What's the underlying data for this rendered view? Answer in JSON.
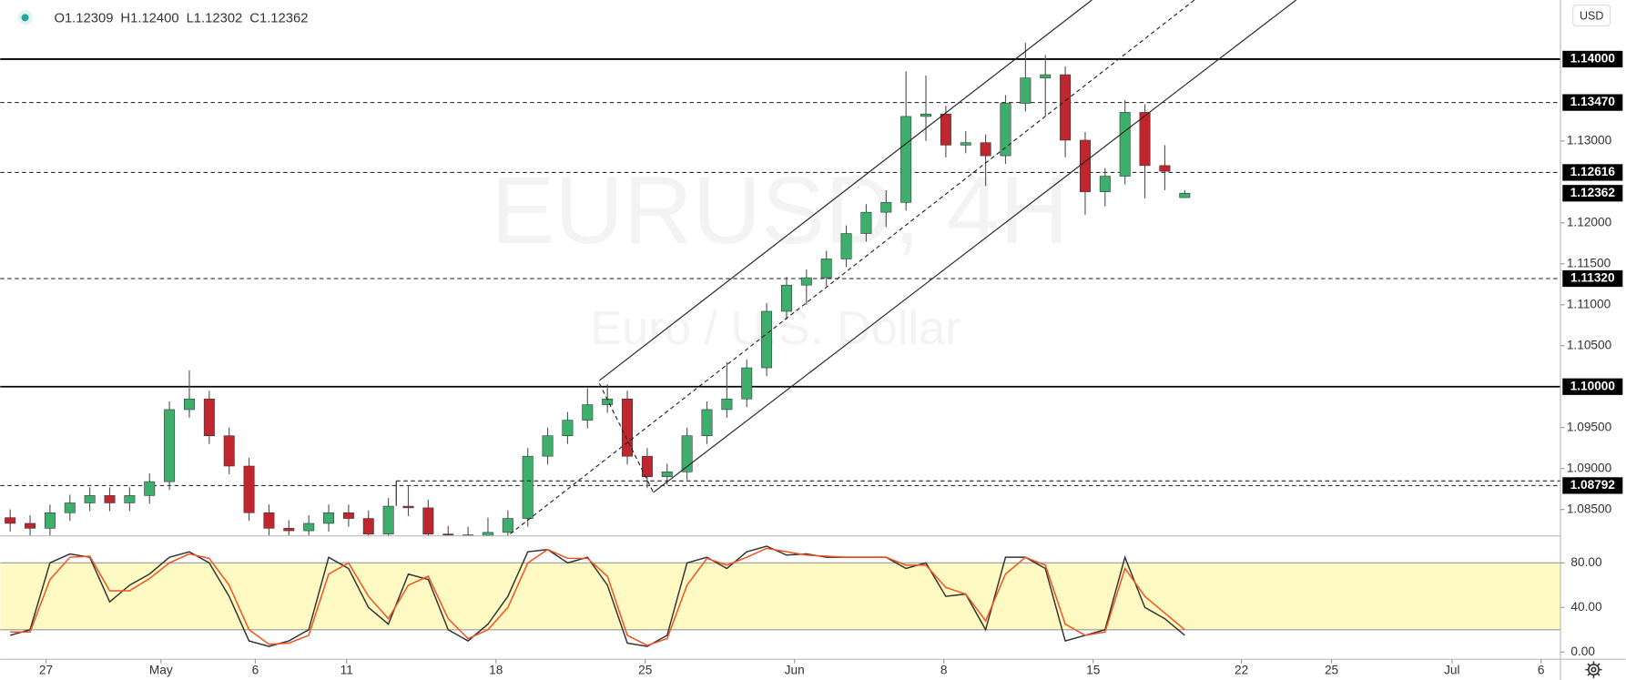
{
  "chart_data": [
    {
      "type": "candlestick",
      "watermark": [
        "EURUSD, 4H",
        "Euro / U.S. Dollar"
      ],
      "currency": "USD",
      "ohlc_labels": [
        "O1.12309",
        "H1.12400",
        "L1.12302",
        "C1.12362"
      ],
      "up_color": "#3dae6b",
      "down_color": "#c0262e",
      "x": [
        2,
        6,
        10,
        14,
        18,
        22,
        26,
        30,
        34,
        38,
        42,
        46,
        50,
        54,
        58,
        62,
        66,
        70,
        74,
        78,
        82,
        86,
        90,
        94,
        98,
        102,
        106,
        110,
        114,
        118,
        122,
        126,
        130,
        134,
        138,
        142,
        146,
        150,
        154,
        158,
        162,
        166,
        170,
        174,
        178,
        182,
        186,
        190,
        194,
        198,
        202,
        206,
        210,
        214,
        218,
        222,
        226,
        230,
        234,
        238
      ],
      "open": [
        1.084,
        1.0833,
        1.0827,
        1.0846,
        1.0858,
        1.0867,
        1.0858,
        1.0867,
        1.0884,
        1.0972,
        1.0985,
        1.094,
        1.0903,
        1.0846,
        1.0827,
        1.0824,
        1.0833,
        1.0846,
        1.0839,
        1.082,
        1.0854,
        1.0852,
        1.082,
        1.0819,
        1.0818,
        1.0822,
        1.0839,
        1.0915,
        1.094,
        1.0959,
        1.0978,
        1.0985,
        1.0915,
        1.089,
        1.0896,
        1.094,
        1.0972,
        1.0985,
        1.1023,
        1.1092,
        1.1124,
        1.1133,
        1.1156,
        1.1187,
        1.1213,
        1.1225,
        1.133,
        1.1333,
        1.1295,
        1.1298,
        1.1282,
        1.1346,
        1.1377,
        1.1381,
        1.1301,
        1.1238,
        1.1257,
        1.1335,
        1.127,
        1.12309
      ],
      "high": [
        1.085,
        1.0843,
        1.0856,
        1.0868,
        1.0877,
        1.0877,
        1.0877,
        1.0894,
        1.0982,
        1.102,
        1.0995,
        1.095,
        1.0913,
        1.0856,
        1.0837,
        1.0843,
        1.0856,
        1.0856,
        1.0849,
        1.0864,
        1.0879,
        1.0862,
        1.083,
        1.0829,
        1.084,
        1.0849,
        1.0925,
        1.095,
        1.0969,
        1.0998,
        1.1003,
        1.0995,
        1.0925,
        1.0906,
        1.095,
        1.0982,
        1.103,
        1.1033,
        1.1102,
        1.1134,
        1.1143,
        1.1166,
        1.1197,
        1.1223,
        1.124,
        1.1385,
        1.138,
        1.1343,
        1.1312,
        1.1308,
        1.1356,
        1.142,
        1.1405,
        1.1391,
        1.1311,
        1.1267,
        1.135,
        1.1345,
        1.1295,
        1.124
      ],
      "low": [
        1.0823,
        1.0817,
        1.0817,
        1.0836,
        1.0848,
        1.0848,
        1.0848,
        1.0857,
        1.0874,
        1.0962,
        1.093,
        1.0893,
        1.0836,
        1.0817,
        1.0814,
        1.0814,
        1.0823,
        1.0829,
        1.081,
        1.081,
        1.0842,
        1.081,
        1.0809,
        1.0808,
        1.0808,
        1.0812,
        1.0829,
        1.0905,
        1.093,
        1.0949,
        1.0968,
        1.0905,
        1.0876,
        1.088,
        1.0886,
        1.093,
        1.0962,
        1.0975,
        1.1013,
        1.1082,
        1.11,
        1.1123,
        1.1146,
        1.1177,
        1.1195,
        1.1215,
        1.13,
        1.128,
        1.1285,
        1.1245,
        1.1272,
        1.1336,
        1.133,
        1.128,
        1.121,
        1.122,
        1.1247,
        1.123,
        1.124,
        1.12302
      ],
      "close": [
        1.0833,
        1.0827,
        1.0846,
        1.0858,
        1.0867,
        1.0858,
        1.0867,
        1.0884,
        1.0972,
        1.0985,
        1.094,
        1.0903,
        1.0846,
        1.0827,
        1.0824,
        1.0833,
        1.0846,
        1.0839,
        1.082,
        1.0854,
        1.0852,
        1.082,
        1.0819,
        1.0818,
        1.0822,
        1.0839,
        1.0915,
        1.094,
        1.0959,
        1.0978,
        1.0985,
        1.0915,
        1.089,
        1.0896,
        1.094,
        1.0972,
        1.0985,
        1.1023,
        1.1092,
        1.1124,
        1.1133,
        1.1156,
        1.1187,
        1.1213,
        1.1225,
        1.133,
        1.1333,
        1.1295,
        1.1298,
        1.1282,
        1.1346,
        1.1377,
        1.1381,
        1.1301,
        1.1238,
        1.1257,
        1.1335,
        1.127,
        1.1263,
        1.12362
      ],
      "xlim": [
        0,
        313.5
      ],
      "ylim": [
        1.08177,
        1.14722
      ],
      "yticks": [
        {
          "value": 1.085,
          "label": "1.08500"
        },
        {
          "value": 1.09,
          "label": "1.09000"
        },
        {
          "value": 1.095,
          "label": "1.09500"
        },
        {
          "value": 1.105,
          "label": "1.10500"
        },
        {
          "value": 1.11,
          "label": "1.11000"
        },
        {
          "value": 1.115,
          "label": "1.11500"
        },
        {
          "value": 1.12,
          "label": "1.12000"
        },
        {
          "value": 1.13,
          "label": "1.13000"
        }
      ],
      "xticks": [
        {
          "value": 9.2,
          "label": "27"
        },
        {
          "value": 32.3,
          "label": "May"
        },
        {
          "value": 51.25,
          "label": "6"
        },
        {
          "value": 69.6,
          "label": "11"
        },
        {
          "value": 99.6,
          "label": "18"
        },
        {
          "value": 129.6,
          "label": "25"
        },
        {
          "value": 159.6,
          "label": "Jun"
        },
        {
          "value": 189.6,
          "label": "8"
        },
        {
          "value": 219.6,
          "label": "15"
        },
        {
          "value": 249.4,
          "label": "22"
        },
        {
          "value": 267.5,
          "label": "25"
        },
        {
          "value": 291.7,
          "label": "Jul"
        },
        {
          "value": 309.6,
          "label": "6"
        }
      ],
      "levels": [
        {
          "value": 1.14,
          "label": "1.14000"
        },
        {
          "value": 1.1347,
          "label": "1.13470"
        },
        1.12616,
        {
          "value": 1.1132,
          "label": "1.11320"
        },
        {
          "value": 1.1,
          "label": "1.10000"
        },
        1.08792
      ],
      "level_styles": [
        "solid",
        "dashed",
        "dashed",
        "dashed",
        "solid",
        "dashed"
      ],
      "last_price": 1.12362
    },
    {
      "type": "line",
      "x": [
        2,
        6,
        10,
        14,
        18,
        22,
        26,
        30,
        34,
        38,
        42,
        46,
        50,
        54,
        58,
        62,
        66,
        70,
        74,
        78,
        82,
        86,
        90,
        94,
        98,
        102,
        106,
        110,
        114,
        118,
        122,
        126,
        130,
        134,
        138,
        142,
        146,
        150,
        154,
        158,
        162,
        166,
        170,
        174,
        178,
        182,
        186,
        190,
        194,
        198,
        202,
        206,
        210,
        214,
        218,
        222,
        226,
        230,
        234,
        238
      ],
      "series": [
        {
          "color": "#333333",
          "values": [
            15,
            20,
            80,
            88,
            85,
            45,
            60,
            70,
            85,
            90,
            80,
            50,
            10,
            5,
            10,
            20,
            85,
            75,
            40,
            25,
            70,
            65,
            20,
            10,
            25,
            50,
            90,
            92,
            80,
            85,
            60,
            8,
            5,
            15,
            80,
            85,
            75,
            90,
            95,
            87,
            88,
            85,
            85,
            85,
            85,
            75,
            80,
            50,
            52,
            20,
            85,
            85,
            75,
            10,
            15,
            20,
            85,
            40,
            30,
            15
          ]
        },
        {
          "color": "#f4511e",
          "values": [
            18,
            18,
            65,
            85,
            86,
            55,
            55,
            66,
            80,
            88,
            84,
            60,
            20,
            7,
            8,
            15,
            70,
            80,
            50,
            30,
            60,
            68,
            30,
            12,
            20,
            40,
            80,
            92,
            84,
            84,
            68,
            15,
            6,
            12,
            60,
            84,
            78,
            85,
            93,
            90,
            87,
            86,
            85,
            85,
            85,
            78,
            78,
            58,
            52,
            28,
            70,
            85,
            78,
            25,
            15,
            18,
            75,
            50,
            35,
            20
          ]
        }
      ],
      "band": [
        20,
        80
      ],
      "band_color": "#fff9c4",
      "xlim": [
        0,
        313.5
      ],
      "ylim": [
        -6.5,
        104.2
      ],
      "yticks": [
        {
          "value": 0,
          "label": "0.00"
        },
        {
          "value": 40,
          "label": "40.00"
        },
        {
          "value": 80,
          "label": "80.00"
        }
      ]
    }
  ]
}
